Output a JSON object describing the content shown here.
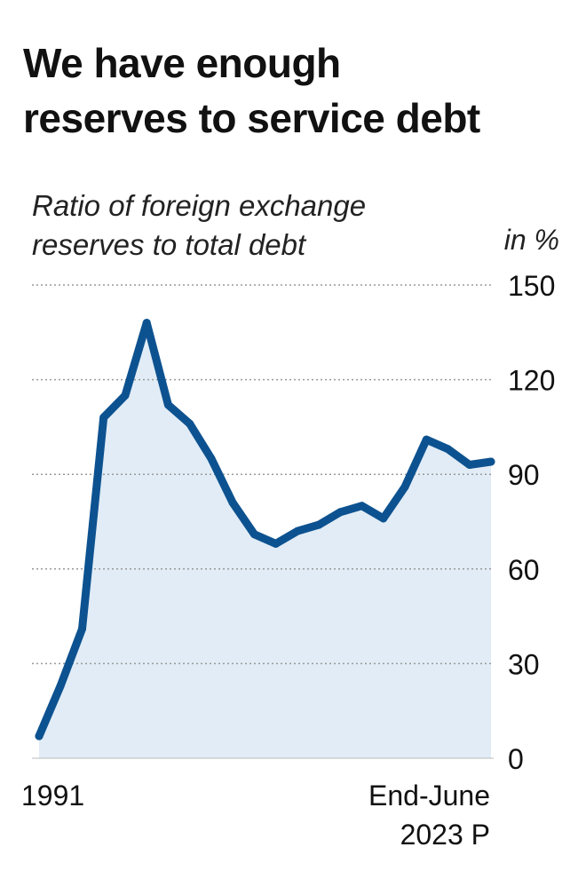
{
  "chart_data": {
    "type": "area",
    "title": [
      "We have enough",
      "reserves to service debt"
    ],
    "subtitle": [
      "Ratio of foreign exchange",
      "reserves to total debt"
    ],
    "unit": "in %",
    "ylim": [
      0,
      150
    ],
    "yticks": [
      0,
      30,
      60,
      90,
      120,
      150
    ],
    "grid": true,
    "x_start_label": "1991",
    "x_end_label": [
      "End-June",
      "2023 P"
    ],
    "series": [
      {
        "values": [
          7,
          23,
          41,
          108,
          115,
          138,
          112,
          106,
          95,
          81,
          71,
          68,
          72,
          74,
          78,
          80,
          76,
          86,
          101,
          98,
          93,
          94
        ]
      }
    ],
    "colors": {
      "line": "#0d5290",
      "fill": "#e1ecf6",
      "grid": "#9a9a9a",
      "text": "#111111"
    }
  }
}
